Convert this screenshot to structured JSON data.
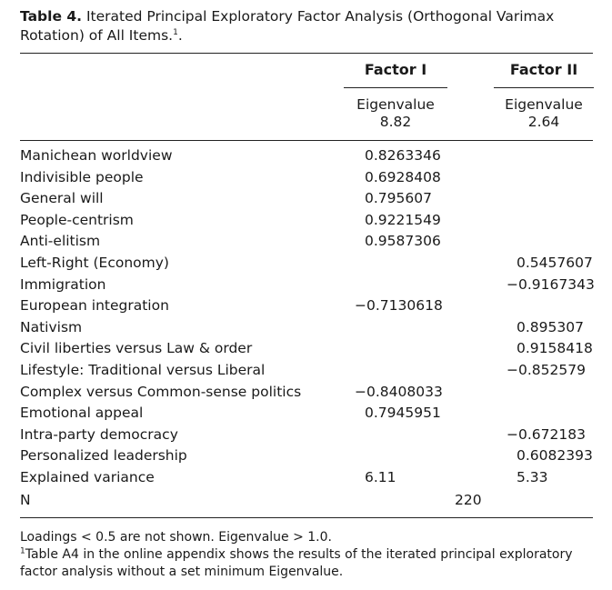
{
  "caption": {
    "label": "Table 4.",
    "text": "Iterated Principal Exploratory Factor Analysis (Orthogonal Varimax Rotation) of All Items.",
    "footnote_mark": "1",
    "end": "."
  },
  "header": {
    "factor1": "Factor I",
    "factor2": "Factor II",
    "eigen_label": "Eigenvalue",
    "eigen1": "8.82",
    "eigen2": "2.64"
  },
  "rows": [
    {
      "label": "Manichean worldview",
      "f1": "0.8263346",
      "f2": ""
    },
    {
      "label": "Indivisible people",
      "f1": "0.6928408",
      "f2": ""
    },
    {
      "label": "General will",
      "f1": "0.795607",
      "f2": ""
    },
    {
      "label": "People-centrism",
      "f1": "0.9221549",
      "f2": ""
    },
    {
      "label": "Anti-elitism",
      "f1": "0.9587306",
      "f2": ""
    },
    {
      "label": "Left-Right (Economy)",
      "f1": "",
      "f2": "0.5457607"
    },
    {
      "label": "Immigration",
      "f1": "",
      "f2": "−0.9167343"
    },
    {
      "label": "European integration",
      "f1": "−0.7130618",
      "f2": ""
    },
    {
      "label": "Nativism",
      "f1": "",
      "f2": "0.895307"
    },
    {
      "label": "Civil liberties versus Law & order",
      "f1": "",
      "f2": "0.9158418"
    },
    {
      "label": "Lifestyle: Traditional versus Liberal",
      "f1": "",
      "f2": "−0.852579"
    },
    {
      "label": "Complex versus Common-sense politics",
      "f1": "−0.8408033",
      "f2": ""
    },
    {
      "label": "Emotional appeal",
      "f1": "0.7945951",
      "f2": ""
    },
    {
      "label": "Intra-party democracy",
      "f1": "",
      "f2": "−0.672183"
    },
    {
      "label": "Personalized leadership",
      "f1": "",
      "f2": "0.6082393"
    },
    {
      "label": "Explained variance",
      "f1": "6.11",
      "f2": "5.33"
    }
  ],
  "n_row": {
    "label": "N",
    "value": "220"
  },
  "footnotes": {
    "note": "Loadings < 0.5 are not shown. Eigenvalue > 1.0.",
    "mark": "1",
    "text": "Table A4 in the online appendix shows the results of the iterated principal exploratory factor analysis without a set minimum Eigenvalue."
  }
}
